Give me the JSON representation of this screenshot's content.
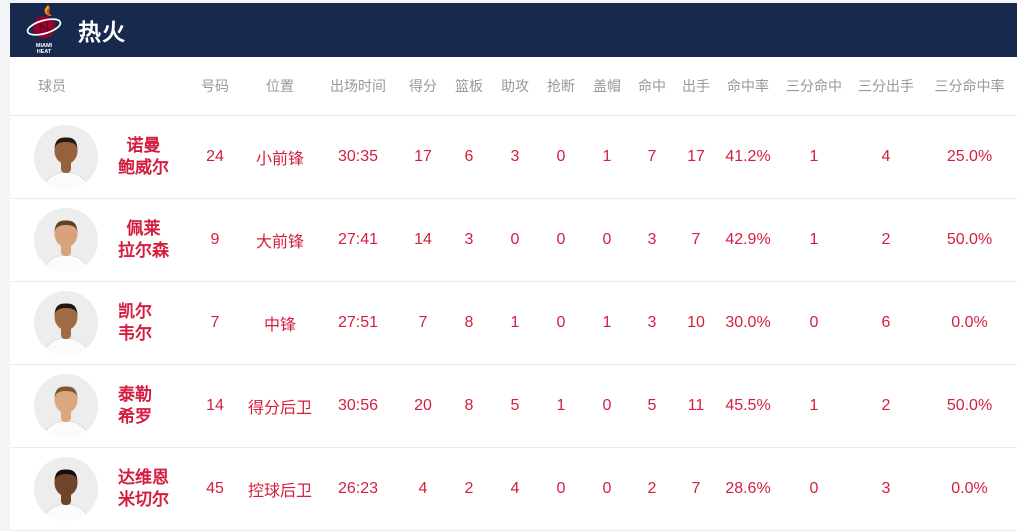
{
  "team_header": {
    "name": "热火",
    "logo": "miami-heat-logo"
  },
  "colors": {
    "header_bg": "#172a4e",
    "stat_red": "#d41e3f",
    "column_header_gray": "#95989f",
    "row_divider": "#ececec",
    "logo_ball_red": "#98002e",
    "logo_flame_orange": "#f9a01b",
    "logo_flame_red": "#e8402a"
  },
  "table": {
    "columns": [
      "球员",
      "号码",
      "位置",
      "出场时间",
      "得分",
      "篮板",
      "助攻",
      "抢断",
      "盖帽",
      "命中",
      "出手",
      "命中率",
      "三分命中",
      "三分出手",
      "三分命中率"
    ],
    "players": [
      {
        "name_line1": "诺曼",
        "name_line2": "鲍威尔",
        "number": "24",
        "position": "小前锋",
        "minutes": "30:35",
        "points": "17",
        "rebounds": "6",
        "assists": "3",
        "steals": "0",
        "blocks": "1",
        "fgm": "7",
        "fga": "17",
        "fg_pct": "41.2%",
        "tpm": "1",
        "tpa": "4",
        "tp_pct": "25.0%",
        "avatar": {
          "skin_color": "#96613f",
          "hair_color": "#241a14",
          "jersey_color": "#fbfbfb"
        }
      },
      {
        "name_line1": "佩莱",
        "name_line2": "拉尔森",
        "number": "9",
        "position": "大前锋",
        "minutes": "27:41",
        "points": "14",
        "rebounds": "3",
        "assists": "0",
        "steals": "0",
        "blocks": "0",
        "fgm": "3",
        "fga": "7",
        "fg_pct": "42.9%",
        "tpm": "1",
        "tpa": "2",
        "tp_pct": "50.0%",
        "avatar": {
          "skin_color": "#d8a37c",
          "hair_color": "#5d4226",
          "jersey_color": "#fbfbfb"
        }
      },
      {
        "name_line1": "凯尔",
        "name_line2": "韦尔",
        "number": "7",
        "position": "中锋",
        "minutes": "27:51",
        "points": "7",
        "rebounds": "8",
        "assists": "1",
        "steals": "0",
        "blocks": "1",
        "fgm": "3",
        "fga": "10",
        "fg_pct": "30.0%",
        "tpm": "0",
        "tpa": "6",
        "tp_pct": "0.0%",
        "avatar": {
          "skin_color": "#a06a45",
          "hair_color": "#1d1512",
          "jersey_color": "#fbfbfb"
        }
      },
      {
        "name_line1": "泰勒",
        "name_line2": "希罗",
        "number": "14",
        "position": "得分后卫",
        "minutes": "30:56",
        "points": "20",
        "rebounds": "8",
        "assists": "5",
        "steals": "1",
        "blocks": "0",
        "fgm": "5",
        "fga": "11",
        "fg_pct": "45.5%",
        "tpm": "1",
        "tpa": "2",
        "tp_pct": "50.0%",
        "avatar": {
          "skin_color": "#dba87e",
          "hair_color": "#7a5a33",
          "jersey_color": "#fbfbfb"
        }
      },
      {
        "name_line1": "达维恩",
        "name_line2": "米切尔",
        "number": "45",
        "position": "控球后卫",
        "minutes": "26:23",
        "points": "4",
        "rebounds": "2",
        "assists": "4",
        "steals": "0",
        "blocks": "0",
        "fgm": "2",
        "fga": "7",
        "fg_pct": "28.6%",
        "tpm": "0",
        "tpa": "3",
        "tp_pct": "0.0%",
        "avatar": {
          "skin_color": "#6e4528",
          "hair_color": "#15100d",
          "jersey_color": "#fbfbfb"
        }
      }
    ]
  }
}
